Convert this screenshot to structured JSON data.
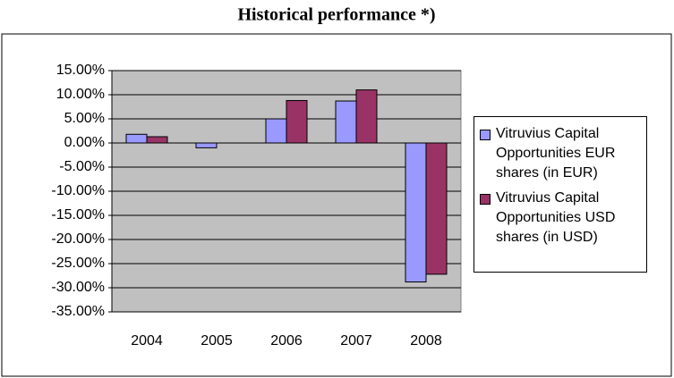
{
  "chart_data": {
    "type": "bar",
    "title": "Historical performance *)",
    "categories": [
      "2004",
      "2005",
      "2006",
      "2007",
      "2008"
    ],
    "series": [
      {
        "name": "Vitruvius Capital Opportunities EUR shares (in EUR)",
        "color": "#9999ff",
        "values": [
          1.8,
          -1.0,
          5.0,
          8.7,
          -28.8
        ]
      },
      {
        "name": "Vitruvius Capital Opportunities USD shares (in USD)",
        "color": "#993366",
        "values": [
          1.3,
          0,
          8.8,
          11.0,
          -27.2
        ]
      }
    ],
    "ylim": [
      -35,
      15
    ],
    "yticks": [
      {
        "value": 15,
        "label": "15.00%"
      },
      {
        "value": 10,
        "label": "10.00%"
      },
      {
        "value": 5,
        "label": "5.00%"
      },
      {
        "value": 0,
        "label": "0.00%"
      },
      {
        "value": -5,
        "label": "-5.00%"
      },
      {
        "value": -10,
        "label": "-10.00%"
      },
      {
        "value": -15,
        "label": "-15.00%"
      },
      {
        "value": -20,
        "label": "-20.00%"
      },
      {
        "value": -25,
        "label": "-25.00%"
      },
      {
        "value": -30,
        "label": "-30.00%"
      },
      {
        "value": -35,
        "label": "-35.00%"
      }
    ],
    "grid": true,
    "legend": "right"
  }
}
